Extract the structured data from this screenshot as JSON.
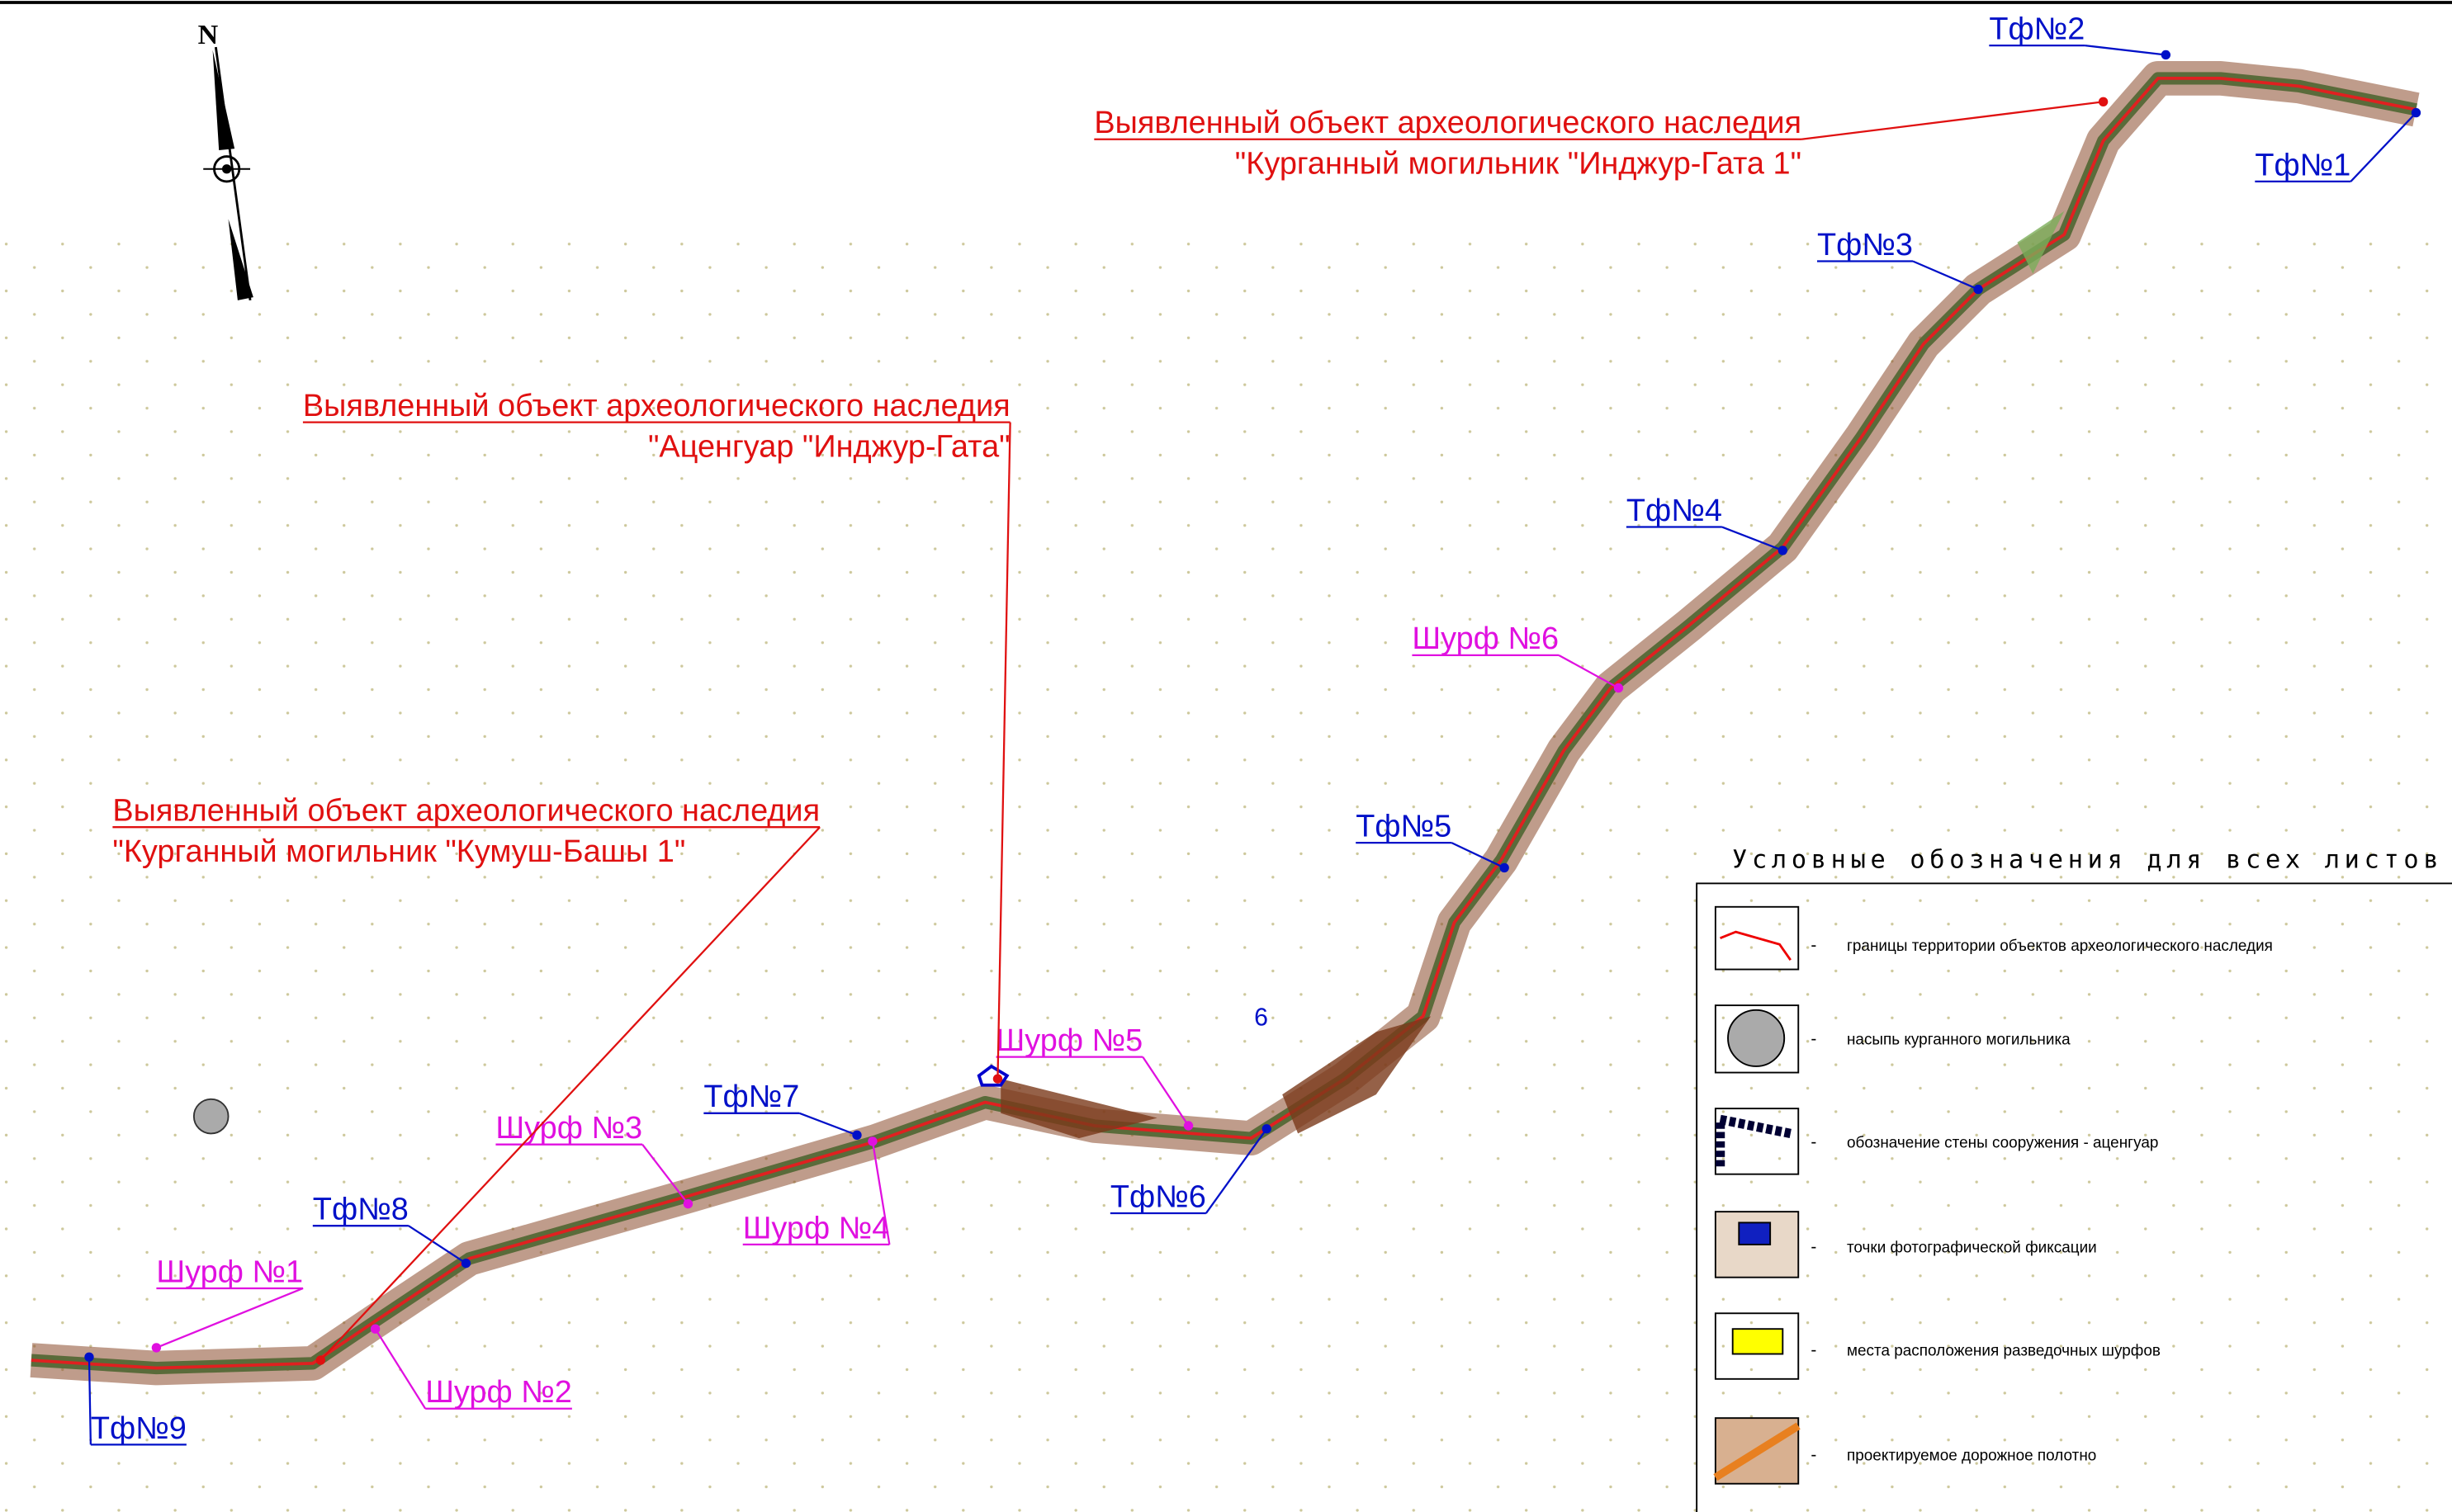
{
  "north": "N",
  "photo_points": [
    {
      "label": "Тф№1"
    },
    {
      "label": "Тф№2"
    },
    {
      "label": "Тф№3"
    },
    {
      "label": "Тф№4"
    },
    {
      "label": "Тф№5"
    },
    {
      "label": "Тф№6"
    },
    {
      "label": "Тф№7"
    },
    {
      "label": "Тф№8"
    },
    {
      "label": "Тф№9"
    }
  ],
  "pits": [
    {
      "label": "Шурф №1"
    },
    {
      "label": "Шурф №2"
    },
    {
      "label": "Шурф №3"
    },
    {
      "label": "Шурф №4"
    },
    {
      "label": "Шурф №5"
    },
    {
      "label": "Шурф №6"
    }
  ],
  "heritage_objects": [
    {
      "line1": "Выявленный объект археологического наследия",
      "line2": "\"Курганный могильник \"Инджур-Гата 1\""
    },
    {
      "line1": "Выявленный объект археологического наследия",
      "line2": "\"Аценгуар \"Инджур-Гата\""
    },
    {
      "line1": "Выявленный объект археологического наследия",
      "line2": "\"Курганный могильник \"Кумуш-Башы 1\""
    }
  ],
  "sheet_mark": "6",
  "legend": {
    "title": "Условные обозначения для всех листов",
    "items": [
      {
        "dash": "-",
        "text": "границы территории объектов археологического наследия"
      },
      {
        "dash": "-",
        "text": "насыпь курганного могильника"
      },
      {
        "dash": "-",
        "text": "обозначение стены сооружения - аценгуар"
      },
      {
        "dash": "-",
        "text": "точки фотографической фиксации"
      },
      {
        "dash": "-",
        "text": "места расположения разведочных шурфов"
      },
      {
        "dash": "-",
        "text": "проектируемое дорожное полотно"
      }
    ]
  }
}
